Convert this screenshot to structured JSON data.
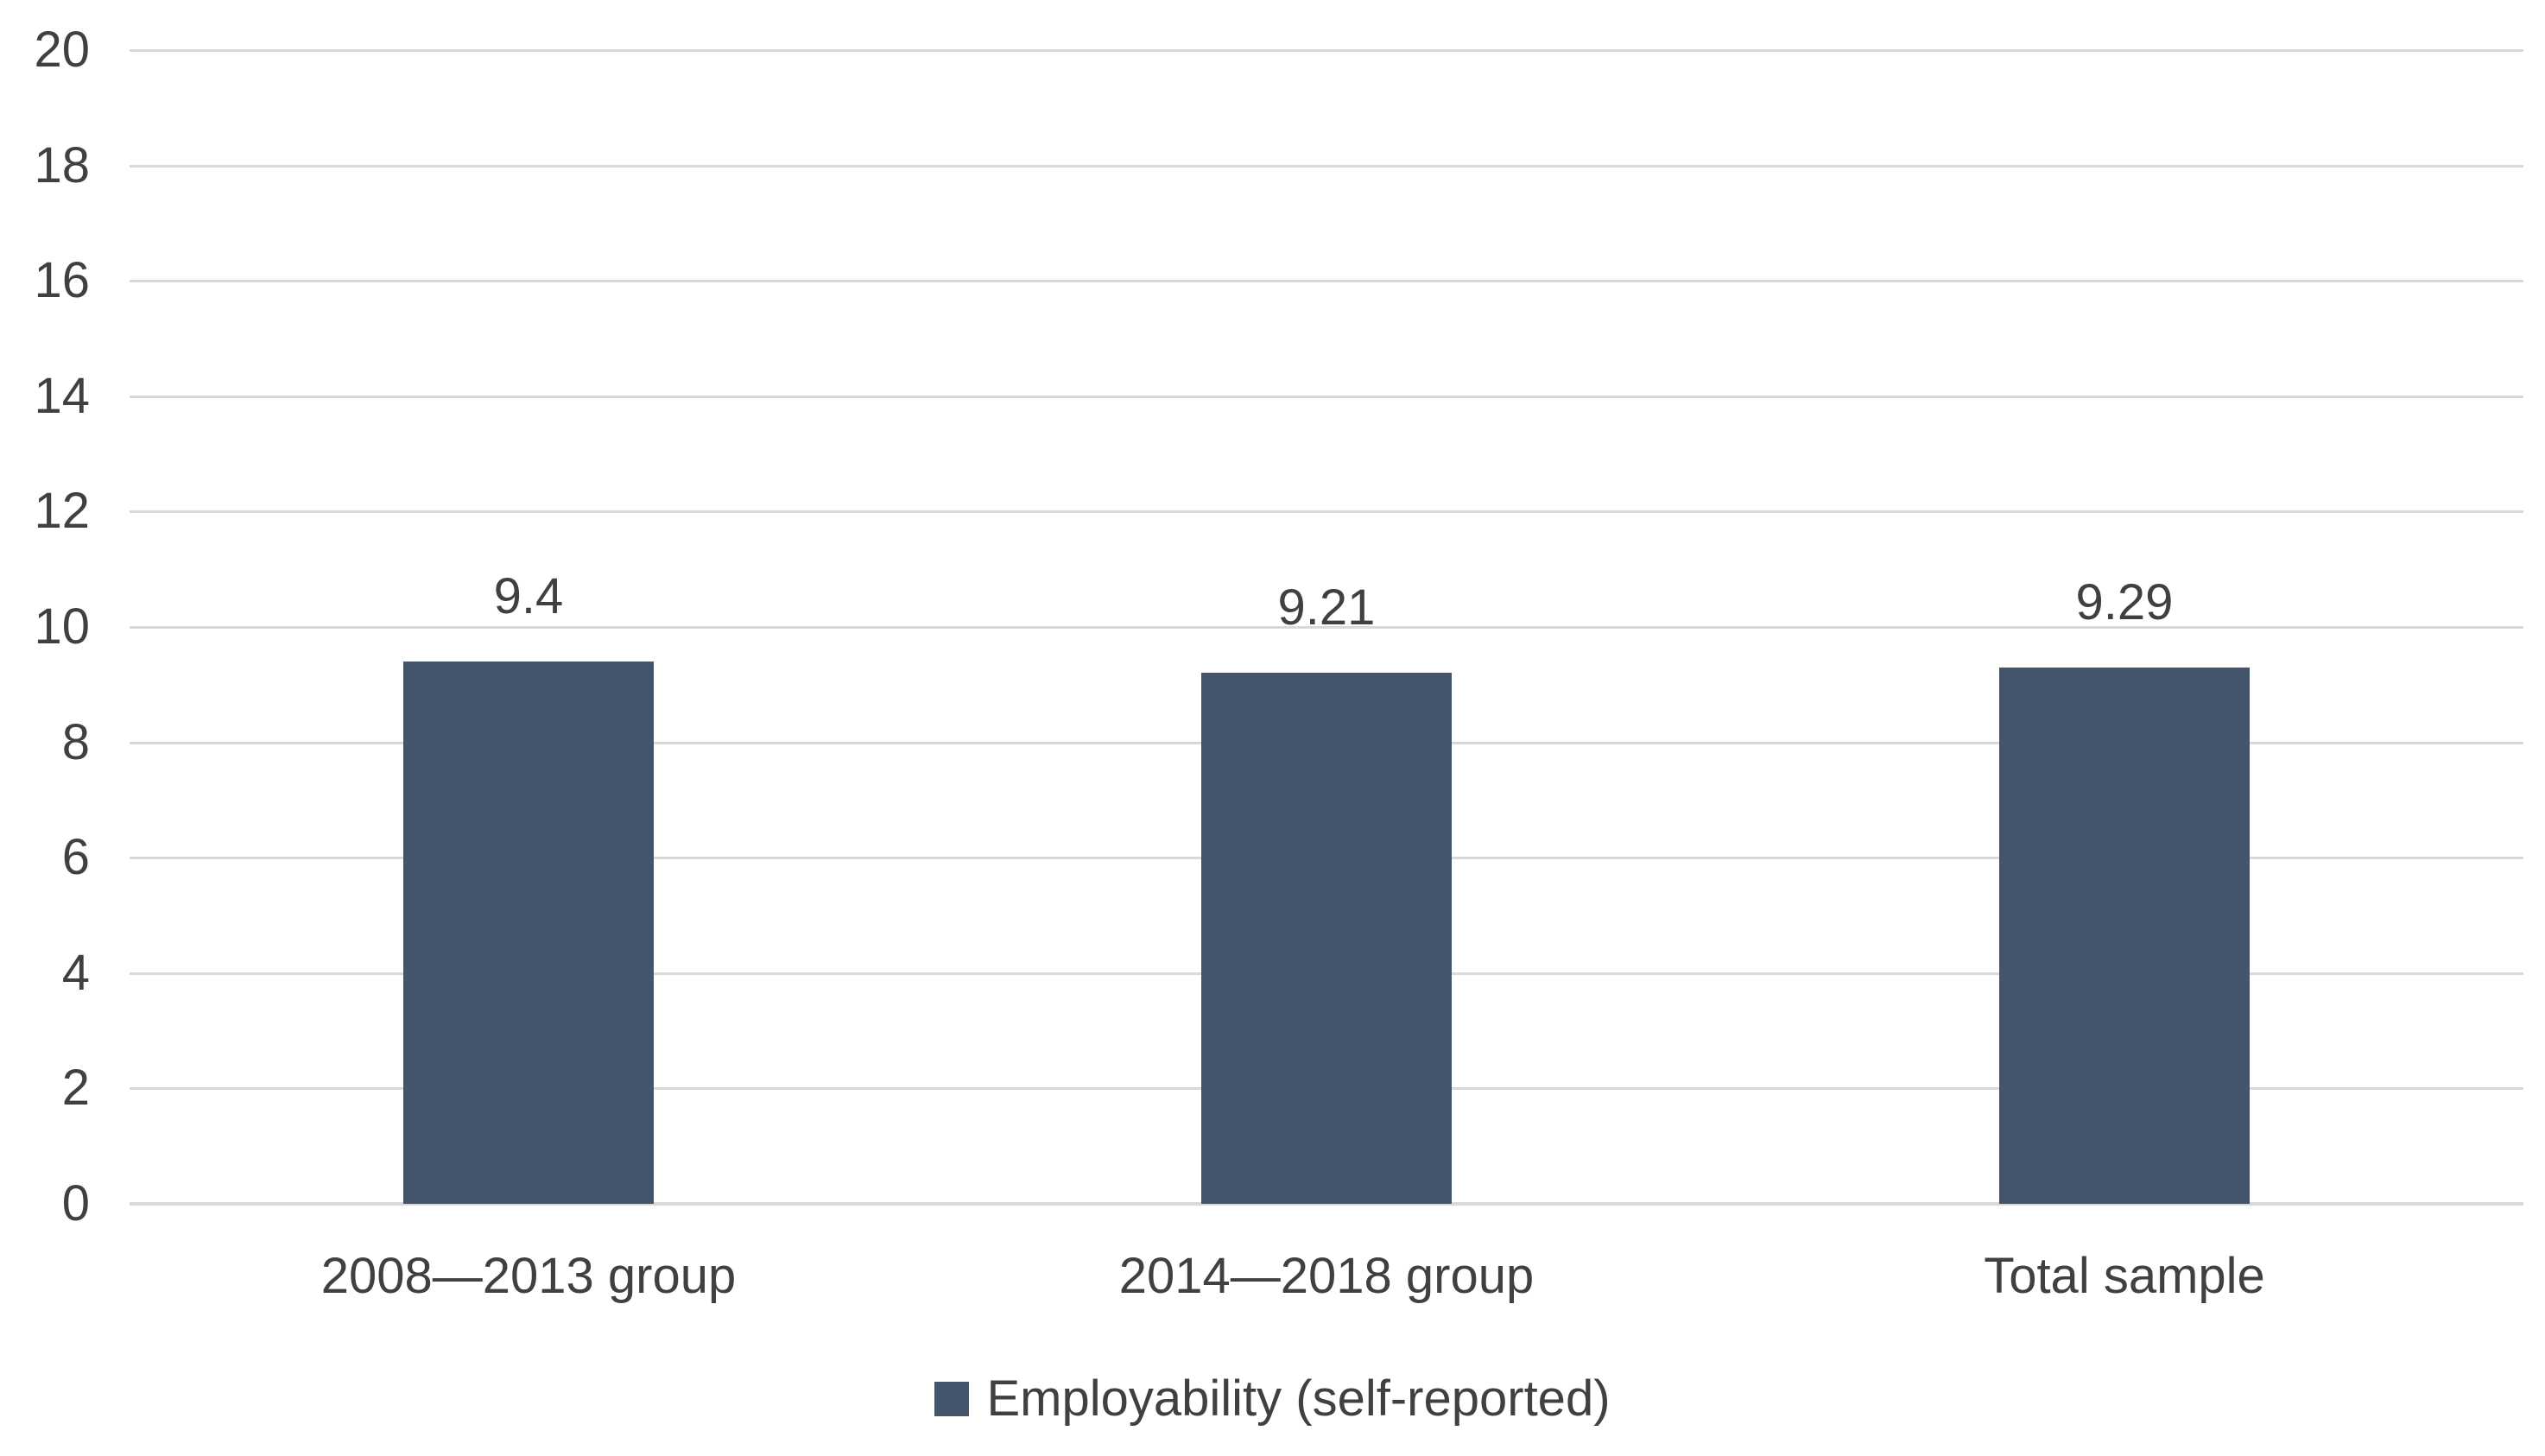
{
  "chart_data": {
    "type": "bar",
    "categories": [
      "2008—2013 group",
      "2014—2018 group",
      "Total sample"
    ],
    "series": [
      {
        "name": "Employability (self-reported)",
        "values": [
          9.4,
          9.21,
          9.29
        ]
      }
    ],
    "data_labels": [
      "9.4",
      "9.21",
      "9.29"
    ],
    "yticks": [
      0,
      2,
      4,
      6,
      8,
      10,
      12,
      14,
      16,
      18,
      20
    ],
    "ylim": [
      0,
      20
    ],
    "grid": "horizontal-on",
    "legend_position": "bottom-center",
    "colors": {
      "bar": "#44546A",
      "gridline": "#D9D9D9",
      "axis_line": "#D9D9D9",
      "text": "#404040",
      "background": "#FFFFFF"
    }
  },
  "legend": {
    "label": "Employability (self-reported)"
  }
}
